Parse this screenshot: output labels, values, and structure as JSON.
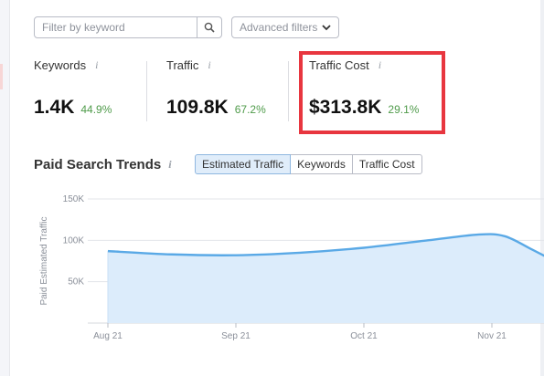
{
  "filters": {
    "search_placeholder": "Filter by keyword",
    "advanced_label": "Advanced filters"
  },
  "metrics": [
    {
      "label": "Keywords",
      "value": "1.4K",
      "change": "44.9%"
    },
    {
      "label": "Traffic",
      "value": "109.8K",
      "change": "67.2%"
    },
    {
      "label": "Traffic Cost",
      "value": "$313.8K",
      "change": "29.1%"
    }
  ],
  "trends": {
    "title": "Paid Search Trends",
    "info_icon": "i",
    "tabs": [
      {
        "label": "Estimated Traffic",
        "active": true
      },
      {
        "label": "Keywords",
        "active": false
      },
      {
        "label": "Traffic Cost",
        "active": false
      }
    ]
  },
  "chart_data": {
    "type": "area",
    "ylabel": "Paid Estimated Traffic",
    "x": [
      "Aug 21",
      "Sep 21",
      "Oct 21",
      "Nov 21"
    ],
    "yticks": [
      "150K",
      "100K",
      "50K"
    ],
    "ylim": [
      0,
      150000
    ],
    "series": [
      {
        "values": [
          [
            0.0,
            87000
          ],
          [
            0.5,
            83000
          ],
          [
            1.0,
            82000
          ],
          [
            1.5,
            85000
          ],
          [
            2.0,
            91000
          ],
          [
            2.5,
            100000
          ],
          [
            2.9,
            107000
          ],
          [
            3.1,
            105000
          ],
          [
            3.3,
            90000
          ],
          [
            3.45,
            78000
          ]
        ]
      }
    ],
    "colors": {
      "line": "#5aa9e6",
      "fill": "#dcecfb",
      "highlight": "#e8363f"
    }
  }
}
